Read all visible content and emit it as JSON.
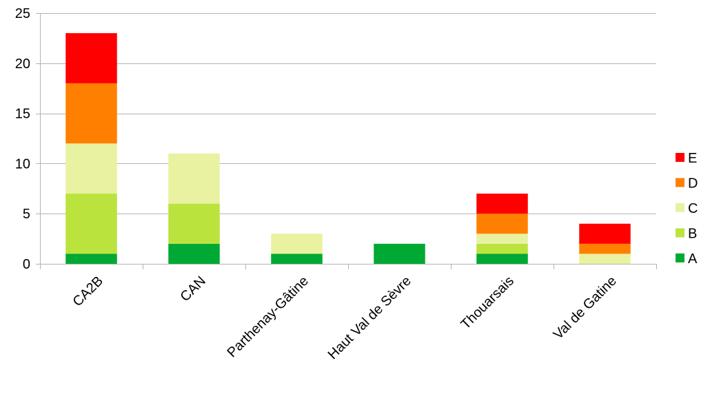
{
  "chart_data": {
    "type": "bar",
    "stacked": true,
    "categories": [
      "CA2B",
      "CAN",
      "Parthenay-Gâtine",
      "Haut Val de Sèvre",
      "Thouarsais",
      "Val de Gatine"
    ],
    "series": [
      {
        "name": "A",
        "color": "#00a933",
        "values": [
          1,
          2,
          1,
          2,
          1,
          0
        ]
      },
      {
        "name": "B",
        "color": "#bbe33d",
        "values": [
          6,
          4,
          0,
          0,
          1,
          0
        ]
      },
      {
        "name": "C",
        "color": "#e8f2a1",
        "values": [
          5,
          5,
          2,
          0,
          1,
          1
        ]
      },
      {
        "name": "D",
        "color": "#ff8000",
        "values": [
          6,
          0,
          0,
          0,
          2,
          1
        ]
      },
      {
        "name": "E",
        "color": "#ff0000",
        "values": [
          5,
          0,
          0,
          0,
          2,
          2
        ]
      }
    ],
    "ylim": [
      0,
      25
    ],
    "yticks": [
      0,
      5,
      10,
      15,
      20,
      25
    ],
    "ytick_labels": [
      "0",
      "5",
      "10",
      "15",
      "20",
      "25"
    ],
    "grid": true,
    "legend": {
      "position": "right",
      "order": [
        "E",
        "D",
        "C",
        "B",
        "A"
      ]
    },
    "title": "",
    "xlabel": "",
    "ylabel": ""
  }
}
